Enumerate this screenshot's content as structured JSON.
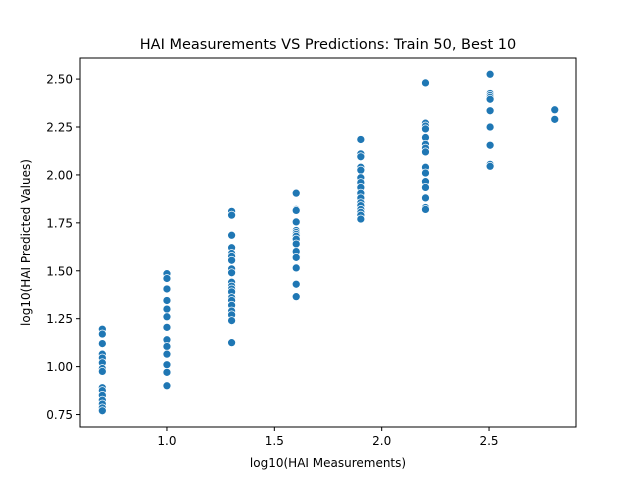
{
  "chart_data": {
    "type": "scatter",
    "title": "HAI Measurements VS Predictions: Train 50, Best 10",
    "xlabel": "log10(HAI Measurements)",
    "ylabel": "log10(HAI Predicted Values)",
    "xlim": [
      0.595,
      2.905
    ],
    "ylim": [
      0.685,
      2.61
    ],
    "xticks": [
      1.0,
      1.5,
      2.0,
      2.5
    ],
    "xtick_labels": [
      "1.0",
      "1.5",
      "2.0",
      "2.5"
    ],
    "yticks": [
      0.75,
      1.0,
      1.25,
      1.5,
      1.75,
      2.0,
      2.25,
      2.5
    ],
    "ytick_labels": [
      "0.75",
      "1.00",
      "1.25",
      "1.50",
      "1.75",
      "2.00",
      "2.25",
      "2.50"
    ],
    "grid": false,
    "legend": false,
    "marker_color": "#1f77b4",
    "marker_edge_color": "#ffffff",
    "points": [
      {
        "x": 0.699,
        "y": 1.195
      },
      {
        "x": 0.699,
        "y": 1.17
      },
      {
        "x": 0.699,
        "y": 1.12
      },
      {
        "x": 0.699,
        "y": 1.065
      },
      {
        "x": 0.699,
        "y": 1.045
      },
      {
        "x": 0.699,
        "y": 1.02
      },
      {
        "x": 0.699,
        "y": 0.99
      },
      {
        "x": 0.699,
        "y": 0.975
      },
      {
        "x": 0.699,
        "y": 0.89
      },
      {
        "x": 0.699,
        "y": 0.875
      },
      {
        "x": 0.699,
        "y": 0.85
      },
      {
        "x": 0.699,
        "y": 0.825
      },
      {
        "x": 0.699,
        "y": 0.805
      },
      {
        "x": 0.699,
        "y": 0.785
      },
      {
        "x": 0.699,
        "y": 0.77
      },
      {
        "x": 1.0,
        "y": 1.485
      },
      {
        "x": 1.0,
        "y": 1.46
      },
      {
        "x": 1.0,
        "y": 1.405
      },
      {
        "x": 1.0,
        "y": 1.345
      },
      {
        "x": 1.0,
        "y": 1.3
      },
      {
        "x": 1.0,
        "y": 1.26
      },
      {
        "x": 1.0,
        "y": 1.205
      },
      {
        "x": 1.0,
        "y": 1.14
      },
      {
        "x": 1.0,
        "y": 1.105
      },
      {
        "x": 1.0,
        "y": 1.065
      },
      {
        "x": 1.0,
        "y": 1.01
      },
      {
        "x": 1.0,
        "y": 0.97
      },
      {
        "x": 1.0,
        "y": 0.9
      },
      {
        "x": 1.301,
        "y": 1.81
      },
      {
        "x": 1.301,
        "y": 1.79
      },
      {
        "x": 1.301,
        "y": 1.685
      },
      {
        "x": 1.301,
        "y": 1.62
      },
      {
        "x": 1.301,
        "y": 1.59
      },
      {
        "x": 1.301,
        "y": 1.575
      },
      {
        "x": 1.301,
        "y": 1.555
      },
      {
        "x": 1.301,
        "y": 1.51
      },
      {
        "x": 1.301,
        "y": 1.49
      },
      {
        "x": 1.301,
        "y": 1.44
      },
      {
        "x": 1.301,
        "y": 1.42
      },
      {
        "x": 1.301,
        "y": 1.405
      },
      {
        "x": 1.301,
        "y": 1.39
      },
      {
        "x": 1.301,
        "y": 1.36
      },
      {
        "x": 1.301,
        "y": 1.345
      },
      {
        "x": 1.301,
        "y": 1.32
      },
      {
        "x": 1.301,
        "y": 1.29
      },
      {
        "x": 1.301,
        "y": 1.27
      },
      {
        "x": 1.301,
        "y": 1.24
      },
      {
        "x": 1.301,
        "y": 1.125
      },
      {
        "x": 1.602,
        "y": 1.905
      },
      {
        "x": 1.602,
        "y": 1.82
      },
      {
        "x": 1.602,
        "y": 1.815
      },
      {
        "x": 1.602,
        "y": 1.755
      },
      {
        "x": 1.602,
        "y": 1.71
      },
      {
        "x": 1.602,
        "y": 1.7
      },
      {
        "x": 1.602,
        "y": 1.69
      },
      {
        "x": 1.602,
        "y": 1.68
      },
      {
        "x": 1.602,
        "y": 1.665
      },
      {
        "x": 1.602,
        "y": 1.64
      },
      {
        "x": 1.602,
        "y": 1.6
      },
      {
        "x": 1.602,
        "y": 1.57
      },
      {
        "x": 1.602,
        "y": 1.515
      },
      {
        "x": 1.602,
        "y": 1.43
      },
      {
        "x": 1.602,
        "y": 1.365
      },
      {
        "x": 1.903,
        "y": 2.185
      },
      {
        "x": 1.903,
        "y": 2.11
      },
      {
        "x": 1.903,
        "y": 2.095
      },
      {
        "x": 1.903,
        "y": 2.04
      },
      {
        "x": 1.903,
        "y": 2.025
      },
      {
        "x": 1.903,
        "y": 1.985
      },
      {
        "x": 1.903,
        "y": 1.96
      },
      {
        "x": 1.903,
        "y": 1.935
      },
      {
        "x": 1.903,
        "y": 1.905
      },
      {
        "x": 1.903,
        "y": 1.88
      },
      {
        "x": 1.903,
        "y": 1.855
      },
      {
        "x": 1.903,
        "y": 1.84
      },
      {
        "x": 1.903,
        "y": 1.82
      },
      {
        "x": 1.903,
        "y": 1.805
      },
      {
        "x": 1.903,
        "y": 1.79
      },
      {
        "x": 1.903,
        "y": 1.77
      },
      {
        "x": 2.204,
        "y": 2.48
      },
      {
        "x": 2.204,
        "y": 2.27
      },
      {
        "x": 2.204,
        "y": 2.255
      },
      {
        "x": 2.204,
        "y": 2.24
      },
      {
        "x": 2.204,
        "y": 2.195
      },
      {
        "x": 2.204,
        "y": 2.16
      },
      {
        "x": 2.204,
        "y": 2.14
      },
      {
        "x": 2.204,
        "y": 2.12
      },
      {
        "x": 2.204,
        "y": 2.04
      },
      {
        "x": 2.204,
        "y": 2.01
      },
      {
        "x": 2.204,
        "y": 1.965
      },
      {
        "x": 2.204,
        "y": 1.935
      },
      {
        "x": 2.204,
        "y": 1.88
      },
      {
        "x": 2.204,
        "y": 1.83
      },
      {
        "x": 2.204,
        "y": 1.82
      },
      {
        "x": 2.505,
        "y": 2.525
      },
      {
        "x": 2.505,
        "y": 2.425
      },
      {
        "x": 2.505,
        "y": 2.415
      },
      {
        "x": 2.505,
        "y": 2.405
      },
      {
        "x": 2.505,
        "y": 2.395
      },
      {
        "x": 2.505,
        "y": 2.335
      },
      {
        "x": 2.505,
        "y": 2.25
      },
      {
        "x": 2.505,
        "y": 2.155
      },
      {
        "x": 2.505,
        "y": 2.055
      },
      {
        "x": 2.505,
        "y": 2.045
      },
      {
        "x": 2.806,
        "y": 2.34
      },
      {
        "x": 2.806,
        "y": 2.29
      }
    ]
  }
}
